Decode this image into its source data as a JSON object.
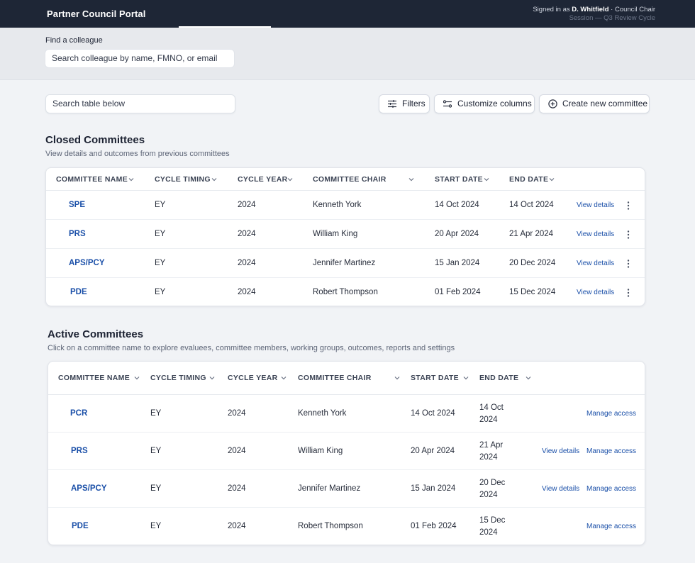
{
  "header": {
    "brand": "Partner Council Portal",
    "signed_in_prefix": "Signed in as ",
    "user_name": "D. Whitfield",
    "user_role": " · Council Chair",
    "session": "Session — Q3 Review Cycle"
  },
  "finder": {
    "label": "Find a colleague",
    "placeholder": "Search colleague by name, FMNO, or email"
  },
  "toolbar": {
    "table_search": "Search table below",
    "filters_label": "Filters",
    "customize_label": "Customize columns",
    "create_label": "Create new committee"
  },
  "closed": {
    "title": "Closed Committees",
    "subtitle": "View details and outcomes from previous committees",
    "columns": [
      "COMMITTEE NAME",
      "CYCLE TIMING",
      "CYCLE YEAR",
      "COMMITTEE CHAIR",
      "START DATE",
      "END DATE"
    ],
    "rows": [
      {
        "name": "SPE",
        "timing": "EY",
        "year": "2024",
        "chair": "Kenneth York",
        "start": "14 Oct 2024",
        "end": "14 Oct 2024",
        "action": "View details"
      },
      {
        "name": "PRS",
        "timing": "EY",
        "year": "2024",
        "chair": "William King",
        "start": "20 Apr 2024",
        "end": "21 Apr 2024",
        "action": "View details"
      },
      {
        "name": "APS/PCY",
        "timing": "EY",
        "year": "2024",
        "chair": "Jennifer Martinez",
        "start": "15 Jan 2024",
        "end": "20 Dec 2024",
        "action": "View details"
      },
      {
        "name": "PDE",
        "timing": "EY",
        "year": "2024",
        "chair": "Robert Thompson",
        "start": "01 Feb 2024",
        "end": "15 Dec 2024",
        "action": "View details"
      }
    ]
  },
  "active": {
    "title": "Active Committees",
    "subtitle": "Click on a committee name to explore evaluees, committee members, working groups, outcomes, reports and settings",
    "columns": [
      "COMMITTEE NAME",
      "CYCLE TIMING",
      "CYCLE YEAR",
      "COMMITTEE CHAIR",
      "START DATE",
      "END DATE"
    ],
    "rows": [
      {
        "name": "PCR",
        "timing": "EY",
        "year": "2024",
        "chair": "Kenneth York",
        "start": "14 Oct 2024",
        "end_day": "14 Oct",
        "end_year": "2024",
        "view": "",
        "manage": "Manage access"
      },
      {
        "name": "PRS",
        "timing": "EY",
        "year": "2024",
        "chair": "William King",
        "start": "20 Apr 2024",
        "end_day": "21 Apr",
        "end_year": "2024",
        "view": "View details",
        "manage": "Manage access"
      },
      {
        "name": "APS/PCY",
        "timing": "EY",
        "year": "2024",
        "chair": "Jennifer Martinez",
        "start": "15 Jan 2024",
        "end_day": "20 Dec",
        "end_year": "2024",
        "view": "View details",
        "manage": "Manage access"
      },
      {
        "name": "PDE",
        "timing": "EY",
        "year": "2024",
        "chair": "Robert Thompson",
        "start": "01 Feb 2024",
        "end_day": "15 Dec",
        "end_year": "2024",
        "view": "",
        "manage": "Manage access"
      }
    ]
  },
  "colors": {
    "header_bg": "#1e2636",
    "link": "#1a4fa8",
    "page_bg": "#f1f3f6"
  }
}
